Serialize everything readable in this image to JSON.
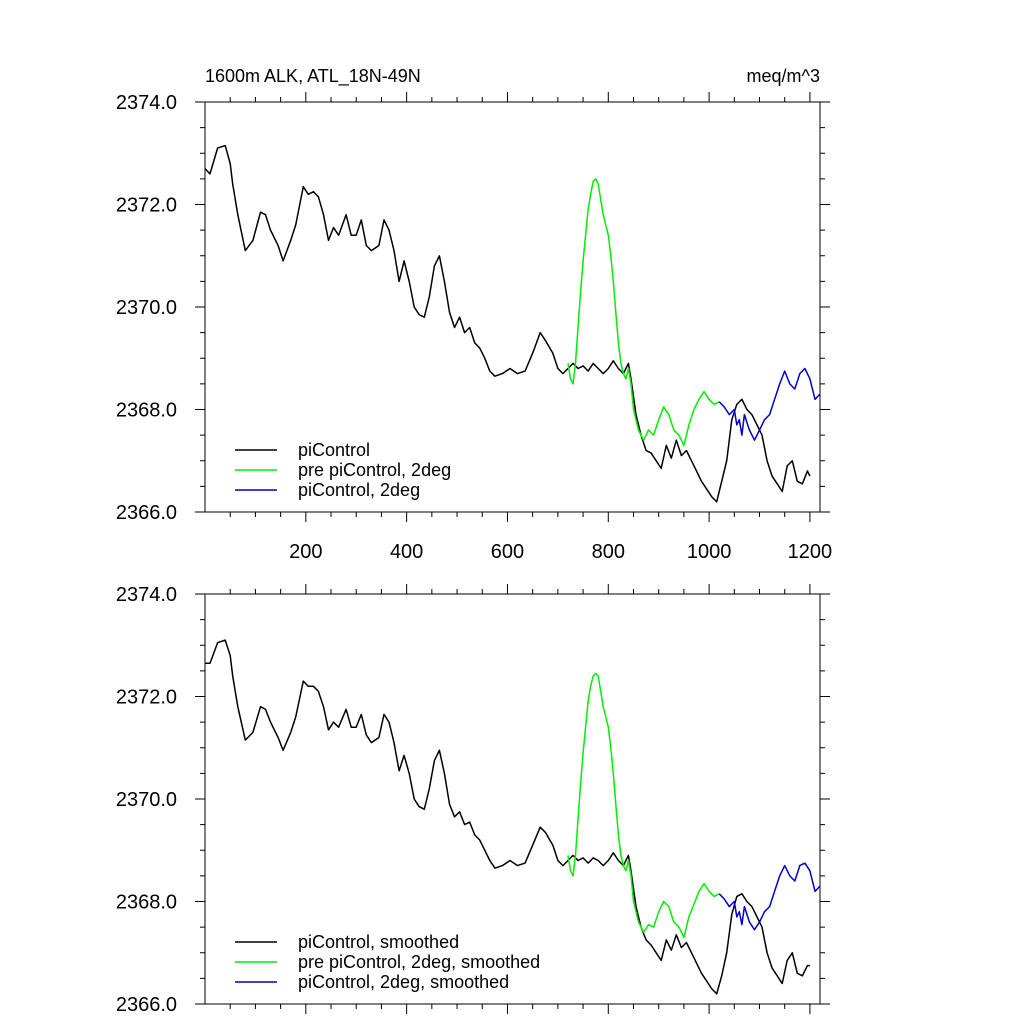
{
  "chart_data": [
    {
      "type": "line",
      "title_left": "1600m ALK, ATL_18N-49N",
      "title_right": "meq/m^3",
      "xlim": [
        0,
        1220
      ],
      "ylim": [
        2366.0,
        2374.0
      ],
      "x_ticks": [
        200,
        400,
        600,
        800,
        1000,
        1200
      ],
      "x_tick_labels": [
        "200",
        "400",
        "600",
        "800",
        "1000",
        "1200"
      ],
      "y_ticks": [
        2366.0,
        2368.0,
        2370.0,
        2372.0,
        2374.0
      ],
      "y_tick_labels": [
        "2366.0",
        "2368.0",
        "2370.0",
        "2372.0",
        "2374.0"
      ],
      "legend_position": "bottom-left",
      "series": [
        {
          "name": "piControl",
          "color": "#000000",
          "x": [
            0,
            10,
            25,
            40,
            50,
            55,
            65,
            80,
            95,
            110,
            120,
            130,
            145,
            155,
            170,
            180,
            195,
            205,
            215,
            225,
            235,
            245,
            255,
            265,
            280,
            290,
            300,
            310,
            320,
            330,
            345,
            355,
            365,
            375,
            385,
            395,
            405,
            415,
            425,
            435,
            445,
            455,
            465,
            475,
            485,
            495,
            505,
            515,
            525,
            535,
            545,
            555,
            565,
            575,
            590,
            605,
            620,
            635,
            650,
            665,
            675,
            690,
            700,
            710,
            720,
            730,
            740,
            750,
            760,
            770,
            780,
            790,
            800,
            810,
            820,
            830,
            840,
            845,
            855,
            865,
            875,
            885,
            895,
            905,
            915,
            925,
            935,
            945,
            955,
            965,
            975,
            985,
            995,
            1005,
            1015,
            1025,
            1035,
            1045,
            1055,
            1065,
            1075,
            1085,
            1095,
            1105,
            1115,
            1125,
            1135,
            1145,
            1155,
            1165,
            1175,
            1185,
            1195,
            1200
          ],
          "y": [
            2372.7,
            2372.6,
            2373.1,
            2373.15,
            2372.8,
            2372.4,
            2371.8,
            2371.1,
            2371.3,
            2371.85,
            2371.8,
            2371.5,
            2371.2,
            2370.9,
            2371.3,
            2371.6,
            2372.35,
            2372.2,
            2372.25,
            2372.15,
            2371.8,
            2371.3,
            2371.55,
            2371.4,
            2371.8,
            2371.4,
            2371.4,
            2371.7,
            2371.2,
            2371.1,
            2371.2,
            2371.7,
            2371.5,
            2371.1,
            2370.5,
            2370.9,
            2370.5,
            2370.0,
            2369.85,
            2369.8,
            2370.2,
            2370.8,
            2371.0,
            2370.5,
            2369.9,
            2369.6,
            2369.8,
            2369.5,
            2369.6,
            2369.3,
            2369.2,
            2369.0,
            2368.75,
            2368.65,
            2368.7,
            2368.8,
            2368.7,
            2368.75,
            2369.1,
            2369.5,
            2369.35,
            2369.1,
            2368.8,
            2368.7,
            2368.8,
            2368.9,
            2368.8,
            2368.85,
            2368.75,
            2368.9,
            2368.8,
            2368.7,
            2368.8,
            2368.95,
            2368.8,
            2368.7,
            2368.9,
            2368.6,
            2367.9,
            2367.5,
            2367.2,
            2367.15,
            2367.0,
            2366.85,
            2367.3,
            2367.05,
            2367.4,
            2367.1,
            2367.2,
            2367.0,
            2366.8,
            2366.6,
            2366.45,
            2366.3,
            2366.2,
            2366.6,
            2367.0,
            2367.8,
            2368.1,
            2368.2,
            2368.0,
            2367.9,
            2367.7,
            2367.5,
            2367.0,
            2366.7,
            2366.55,
            2366.4,
            2366.9,
            2367.0,
            2366.6,
            2366.55,
            2366.8,
            2366.7
          ]
        },
        {
          "name": "pre piControl, 2deg",
          "color": "#00ee00",
          "x": [
            720,
            725,
            730,
            735,
            740,
            745,
            750,
            755,
            760,
            765,
            770,
            775,
            780,
            785,
            790,
            795,
            800,
            805,
            810,
            815,
            820,
            825,
            830,
            835,
            840,
            845,
            850,
            860,
            870,
            880,
            890,
            900,
            910,
            920,
            930,
            940,
            950,
            960,
            970,
            980,
            990,
            1000,
            1010,
            1020
          ],
          "y": [
            2368.9,
            2368.6,
            2368.5,
            2368.9,
            2369.6,
            2370.3,
            2370.9,
            2371.4,
            2371.9,
            2372.2,
            2372.45,
            2372.5,
            2372.4,
            2372.1,
            2371.8,
            2371.6,
            2371.4,
            2371.0,
            2370.5,
            2369.9,
            2369.3,
            2368.9,
            2368.7,
            2368.6,
            2368.8,
            2368.5,
            2368.0,
            2367.6,
            2367.4,
            2367.6,
            2367.5,
            2367.8,
            2368.05,
            2367.9,
            2367.6,
            2367.5,
            2367.3,
            2367.7,
            2368.0,
            2368.2,
            2368.35,
            2368.2,
            2368.1,
            2368.15
          ]
        },
        {
          "name": "piControl, 2deg",
          "color": "#0000cc",
          "x": [
            1020,
            1030,
            1040,
            1050,
            1055,
            1060,
            1065,
            1070,
            1080,
            1090,
            1100,
            1110,
            1120,
            1130,
            1140,
            1150,
            1160,
            1170,
            1180,
            1190,
            1200,
            1210,
            1220
          ],
          "y": [
            2368.15,
            2368.05,
            2367.9,
            2368.0,
            2367.7,
            2367.8,
            2367.5,
            2367.9,
            2367.6,
            2367.4,
            2367.6,
            2367.8,
            2367.9,
            2368.2,
            2368.5,
            2368.75,
            2368.5,
            2368.4,
            2368.7,
            2368.8,
            2368.6,
            2368.2,
            2368.3
          ]
        }
      ]
    },
    {
      "type": "line",
      "xlim": [
        0,
        1220
      ],
      "ylim": [
        2366.0,
        2374.0
      ],
      "x_ticks": [
        200,
        400,
        600,
        800,
        1000,
        1200
      ],
      "y_ticks": [
        2366.0,
        2368.0,
        2370.0,
        2372.0,
        2374.0
      ],
      "y_tick_labels": [
        "2366.0",
        "2368.0",
        "2370.0",
        "2372.0",
        "2374.0"
      ],
      "legend_position": "bottom-left",
      "series": [
        {
          "name": "piControl, smoothed",
          "color": "#000000",
          "x": [
            0,
            10,
            25,
            40,
            50,
            55,
            65,
            80,
            95,
            110,
            120,
            130,
            145,
            155,
            170,
            180,
            195,
            205,
            215,
            225,
            235,
            245,
            255,
            265,
            280,
            290,
            300,
            310,
            320,
            330,
            345,
            355,
            365,
            375,
            385,
            395,
            405,
            415,
            425,
            435,
            445,
            455,
            465,
            475,
            485,
            495,
            505,
            515,
            525,
            535,
            545,
            555,
            565,
            575,
            590,
            605,
            620,
            635,
            650,
            665,
            675,
            690,
            700,
            710,
            720,
            730,
            740,
            750,
            760,
            770,
            780,
            790,
            800,
            810,
            820,
            830,
            840,
            845,
            855,
            865,
            875,
            885,
            895,
            905,
            915,
            925,
            935,
            945,
            955,
            965,
            975,
            985,
            995,
            1005,
            1015,
            1025,
            1035,
            1045,
            1055,
            1065,
            1075,
            1085,
            1095,
            1105,
            1115,
            1125,
            1135,
            1145,
            1155,
            1165,
            1175,
            1185,
            1195,
            1200
          ],
          "y": [
            2372.65,
            2372.65,
            2373.05,
            2373.1,
            2372.8,
            2372.4,
            2371.8,
            2371.15,
            2371.3,
            2371.8,
            2371.75,
            2371.5,
            2371.2,
            2370.95,
            2371.3,
            2371.6,
            2372.3,
            2372.2,
            2372.2,
            2372.1,
            2371.8,
            2371.35,
            2371.5,
            2371.4,
            2371.75,
            2371.4,
            2371.4,
            2371.65,
            2371.25,
            2371.1,
            2371.2,
            2371.65,
            2371.5,
            2371.1,
            2370.55,
            2370.85,
            2370.5,
            2370.0,
            2369.85,
            2369.8,
            2370.2,
            2370.75,
            2370.95,
            2370.5,
            2369.9,
            2369.65,
            2369.75,
            2369.5,
            2369.55,
            2369.3,
            2369.2,
            2369.0,
            2368.8,
            2368.65,
            2368.7,
            2368.8,
            2368.7,
            2368.75,
            2369.1,
            2369.45,
            2369.35,
            2369.1,
            2368.8,
            2368.7,
            2368.8,
            2368.9,
            2368.8,
            2368.85,
            2368.75,
            2368.85,
            2368.8,
            2368.7,
            2368.8,
            2368.95,
            2368.8,
            2368.7,
            2368.9,
            2368.6,
            2367.9,
            2367.5,
            2367.25,
            2367.15,
            2367.0,
            2366.85,
            2367.25,
            2367.05,
            2367.35,
            2367.1,
            2367.2,
            2367.0,
            2366.8,
            2366.6,
            2366.45,
            2366.3,
            2366.2,
            2366.55,
            2367.0,
            2367.75,
            2368.1,
            2368.15,
            2368.0,
            2367.9,
            2367.7,
            2367.5,
            2367.0,
            2366.7,
            2366.55,
            2366.4,
            2366.85,
            2367.0,
            2366.6,
            2366.55,
            2366.75,
            2366.75
          ]
        },
        {
          "name": "pre piControl, 2deg, smoothed",
          "color": "#00ee00",
          "x": [
            720,
            725,
            730,
            735,
            740,
            745,
            750,
            755,
            760,
            765,
            770,
            775,
            780,
            785,
            790,
            795,
            800,
            805,
            810,
            815,
            820,
            825,
            830,
            835,
            840,
            845,
            850,
            860,
            870,
            880,
            890,
            900,
            910,
            920,
            930,
            940,
            950,
            960,
            970,
            980,
            990,
            1000,
            1010,
            1020
          ],
          "y": [
            2368.9,
            2368.6,
            2368.5,
            2368.9,
            2369.6,
            2370.3,
            2370.9,
            2371.4,
            2371.9,
            2372.2,
            2372.4,
            2372.45,
            2372.4,
            2372.1,
            2371.8,
            2371.6,
            2371.4,
            2371.0,
            2370.5,
            2369.9,
            2369.3,
            2368.9,
            2368.7,
            2368.6,
            2368.8,
            2368.5,
            2368.0,
            2367.6,
            2367.4,
            2367.55,
            2367.5,
            2367.8,
            2368.0,
            2367.9,
            2367.6,
            2367.5,
            2367.3,
            2367.7,
            2367.95,
            2368.2,
            2368.35,
            2368.2,
            2368.1,
            2368.15
          ]
        },
        {
          "name": "piControl, 2deg, smoothed",
          "color": "#0000cc",
          "x": [
            1020,
            1030,
            1040,
            1050,
            1055,
            1060,
            1065,
            1070,
            1080,
            1090,
            1100,
            1110,
            1120,
            1130,
            1140,
            1150,
            1160,
            1170,
            1180,
            1190,
            1200,
            1210,
            1220
          ],
          "y": [
            2368.15,
            2368.05,
            2367.9,
            2368.0,
            2367.7,
            2367.8,
            2367.55,
            2367.9,
            2367.6,
            2367.45,
            2367.6,
            2367.8,
            2367.9,
            2368.2,
            2368.5,
            2368.7,
            2368.5,
            2368.4,
            2368.7,
            2368.75,
            2368.6,
            2368.2,
            2368.3
          ]
        }
      ]
    }
  ]
}
